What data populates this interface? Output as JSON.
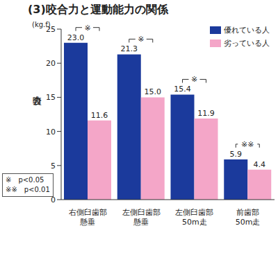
{
  "chart_data": {
    "type": "bar",
    "title": "(3)咬合力と運動能力の関係",
    "y_unit": "(kg.f)",
    "ylabel": "咬合力",
    "categories": [
      "右側臼歯部\n懸垂",
      "左側臼歯部\n懸垂",
      "左側臼歯部\n50m走",
      "前歯部\n50m走"
    ],
    "series": [
      {
        "name": "優れている人",
        "color": "#1b3a9c",
        "values": [
          23.0,
          21.3,
          15.4,
          5.9
        ],
        "value_labels": [
          "23.0",
          "21.3",
          "15.4",
          "5.9"
        ]
      },
      {
        "name": "劣っている人",
        "color": "#f4a6c8",
        "values": [
          11.6,
          15.0,
          11.9,
          4.4
        ],
        "value_labels": [
          "11.6",
          "15.0",
          "11.9",
          "4.4"
        ]
      }
    ],
    "significance": [
      "※",
      "※",
      "※",
      "※※"
    ],
    "notes": [
      "※　p<0.05",
      "※※　p<0.01"
    ],
    "ylim": [
      0,
      25
    ],
    "yticks": [
      0,
      5,
      10,
      15,
      20,
      25
    ],
    "grid": false,
    "legend": "upper right",
    "data_labels": true
  }
}
